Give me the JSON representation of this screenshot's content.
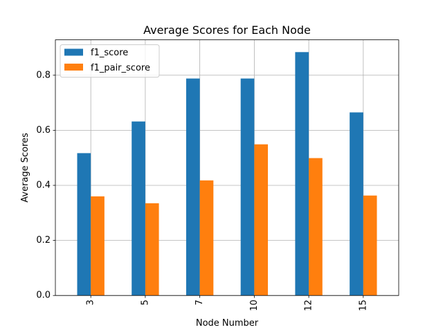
{
  "chart_data": {
    "type": "bar",
    "title": "Average Scores for Each Node",
    "xlabel": "Node Number",
    "ylabel": "Average Scores",
    "categories": [
      "3",
      "5",
      "7",
      "10",
      "12",
      "15"
    ],
    "series": [
      {
        "name": "f1_score",
        "color": "#1f77b4",
        "values": [
          0.517,
          0.632,
          0.788,
          0.788,
          0.884,
          0.665
        ]
      },
      {
        "name": "f1_pair_score",
        "color": "#ff7f0e",
        "values": [
          0.36,
          0.335,
          0.418,
          0.549,
          0.499,
          0.363
        ]
      }
    ],
    "ylim": [
      0,
      0.9285
    ],
    "yticks": [
      0.0,
      0.2,
      0.4,
      0.6,
      0.8
    ],
    "ytick_labels": [
      "0.0",
      "0.2",
      "0.4",
      "0.6",
      "0.8"
    ],
    "grid": true,
    "legend_position": "top-left",
    "x_tick_rotation": "vertical"
  }
}
